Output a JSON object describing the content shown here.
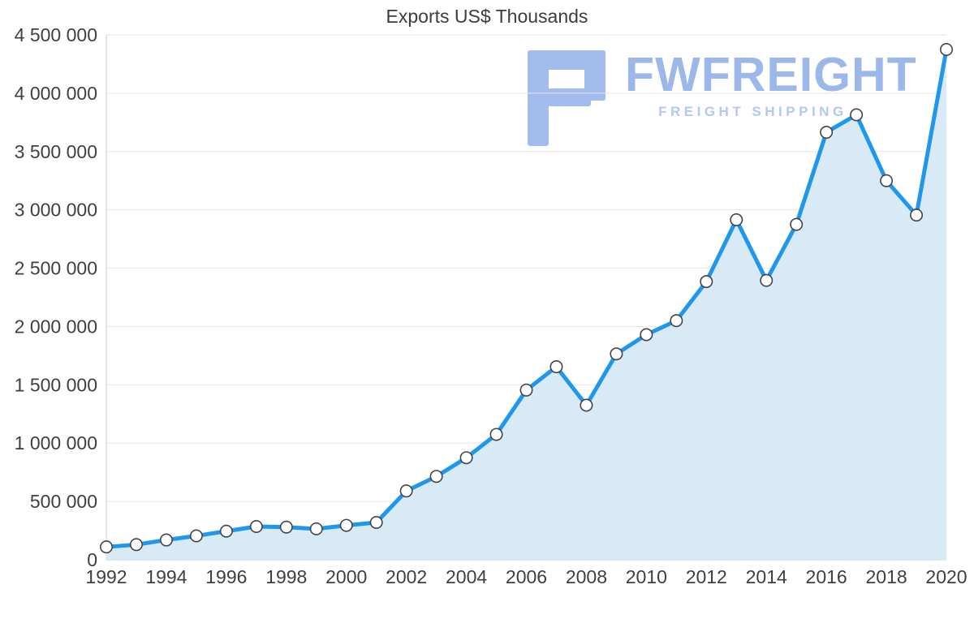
{
  "title": "Exports US$ Thousands",
  "watermark": {
    "brand": "FWFREIGHT",
    "tagline": "FREIGHT SHIPPING"
  },
  "colors": {
    "line": "#1f97ed",
    "area": "#d9eaf7",
    "marker_fill": "#ffffff",
    "marker_stroke": "#444444",
    "grid": "#e6e6e6",
    "axis": "#c9c9c9",
    "text": "#3f3f3f",
    "watermark_brand": "#9cb7ea",
    "watermark_tagline": "#b3c8f1",
    "logo": "#a3bced"
  },
  "chart_data": {
    "type": "line",
    "title": "Exports US$ Thousands",
    "xlabel": "",
    "ylabel": "",
    "x": [
      1992,
      1993,
      1994,
      1995,
      1996,
      1997,
      1998,
      1999,
      2000,
      2001,
      2002,
      2003,
      2004,
      2005,
      2006,
      2007,
      2008,
      2009,
      2010,
      2011,
      2012,
      2013,
      2014,
      2015,
      2016,
      2017,
      2018,
      2019,
      2020
    ],
    "series": [
      {
        "name": "Exports US$ Thousands",
        "values": [
          110000,
          130000,
          170000,
          205000,
          245000,
          285000,
          280000,
          265000,
          295000,
          320000,
          590000,
          715000,
          875000,
          1075000,
          1455000,
          1655000,
          1325000,
          1765000,
          1930000,
          2050000,
          2385000,
          2915000,
          2395000,
          2875000,
          3665000,
          3815000,
          3250000,
          2955000,
          4375000
        ]
      }
    ],
    "ylim": [
      0,
      4500000
    ],
    "ytick_step": 500000,
    "xtick_years_step": 2,
    "grid": true,
    "legend": "none",
    "marker": "circle",
    "area": true
  }
}
